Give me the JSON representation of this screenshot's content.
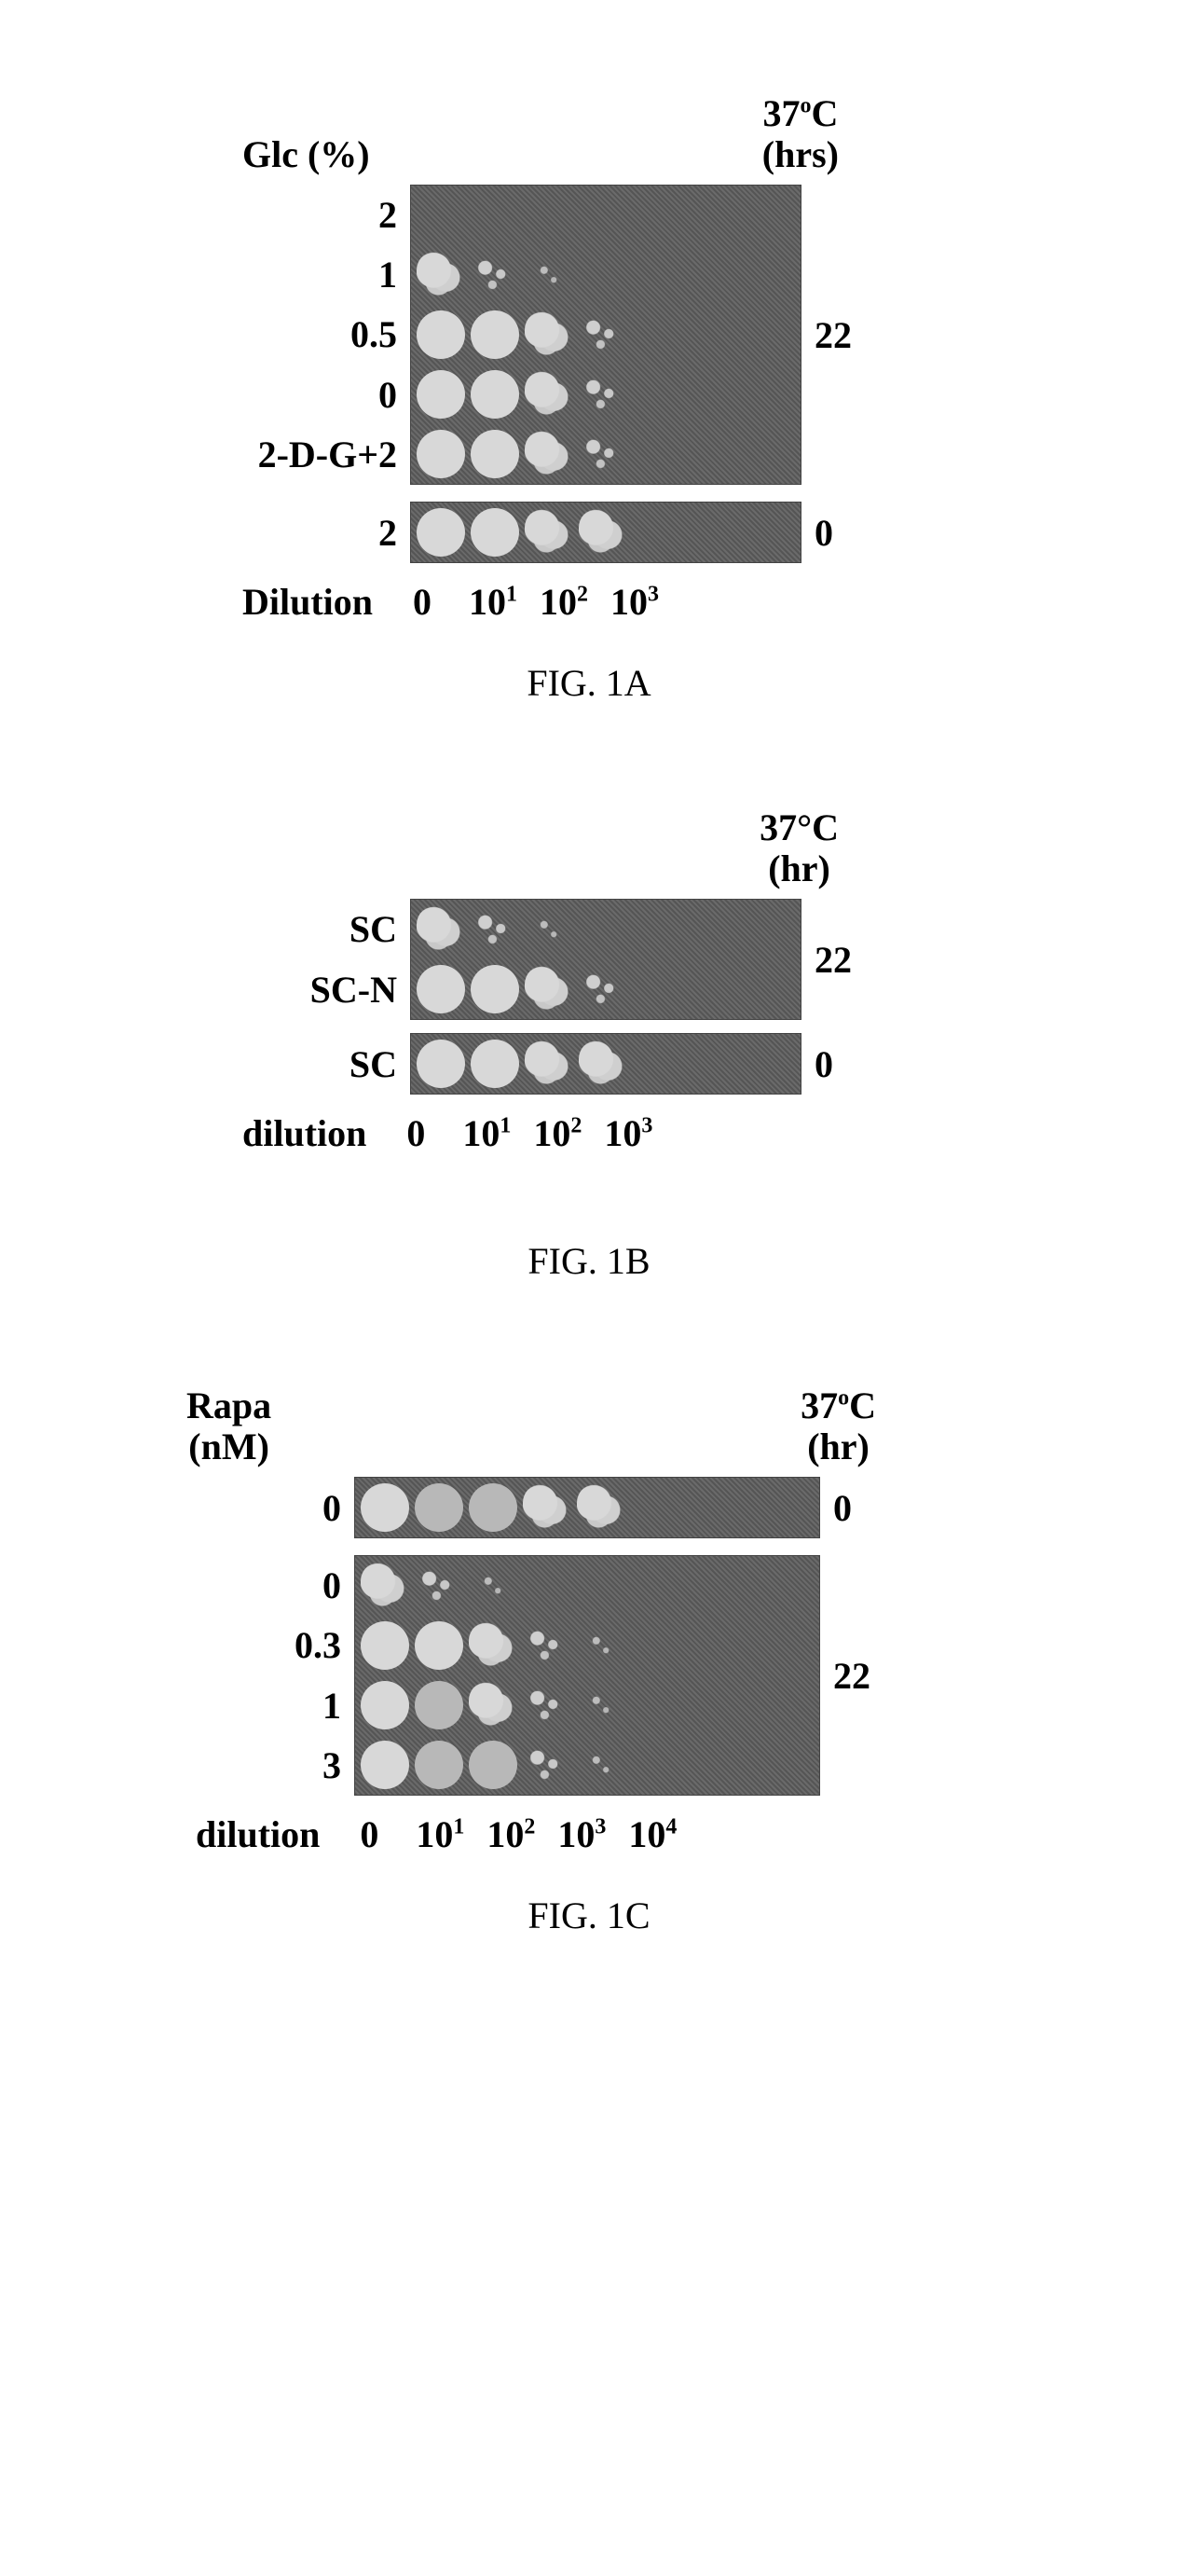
{
  "figA": {
    "topLeft": "Glc (%)",
    "topRightLine1": "37",
    "topRightDegree": "o",
    "topRightC": "C",
    "topRightLine2": "(hrs)",
    "leftLabels": [
      "2",
      "1",
      "0.5",
      "0",
      "2-D-G+2"
    ],
    "rightLabelMain": "22",
    "singleRowLeft": "2",
    "singleRowRight": "0",
    "dilutionLabel": "Dilution",
    "dilutions": [
      "0",
      "10¹",
      "10²",
      "10³"
    ],
    "caption": "FIG. 1A",
    "panelTopRows": [
      [
        "none",
        "none",
        "none",
        "none"
      ],
      [
        "clump",
        "few",
        "sparse",
        "none"
      ],
      [
        "spot",
        "spot",
        "clump",
        "few"
      ],
      [
        "spot",
        "spot",
        "clump",
        "few"
      ],
      [
        "spot",
        "spot",
        "clump",
        "few"
      ]
    ],
    "panelBottomRow": [
      "spot",
      "spot",
      "clump",
      "clump"
    ]
  },
  "figB": {
    "topRightLine1": "37°C",
    "topRightLine2": "(hr)",
    "leftLabelsTop": [
      "SC",
      "SC-N"
    ],
    "rightLabelTop": "22",
    "leftLabelsMid": [
      "SC"
    ],
    "rightLabelMid": "0",
    "dilutionLabel": "dilution",
    "dilutions": [
      "0",
      "10¹",
      "10²",
      "10³"
    ],
    "caption": "FIG. 1B",
    "panelTopRows": [
      [
        "clump",
        "few",
        "sparse",
        "none"
      ],
      [
        "spot",
        "spot",
        "clump",
        "few"
      ]
    ],
    "panelBottomRow": [
      "spot",
      "spot",
      "clump",
      "clump"
    ]
  },
  "figC": {
    "topLeftLine1": "Rapa",
    "topLeftLine2": "(nM)",
    "topRightLine1": "37",
    "topRightDegree": "o",
    "topRightC": "C",
    "topRightLine2": "(hr)",
    "singleRowLeft": "0",
    "singleRowRight": "0",
    "leftLabels": [
      "0",
      "0.3",
      "1",
      "3"
    ],
    "rightLabelMain": "22",
    "dilutionLabel": "dilution",
    "dilutions": [
      "0",
      "10¹",
      "10²",
      "10³",
      "10⁴"
    ],
    "caption": "FIG. 1C",
    "panelTopRow": [
      "spot",
      "dim",
      "dim",
      "clump",
      "clump"
    ],
    "panelBottomRows": [
      [
        "clump",
        "few",
        "sparse",
        "none",
        "none"
      ],
      [
        "spot",
        "spot",
        "clump",
        "few",
        "sparse"
      ],
      [
        "spot",
        "dim",
        "clump",
        "few",
        "sparse"
      ],
      [
        "spot",
        "dim",
        "dim",
        "few",
        "sparse"
      ]
    ]
  },
  "style": {
    "titleFontSize": 40,
    "labelFontSize": 40,
    "spotLight": "#d8d8d8",
    "spotDim": "#b8b8b8",
    "panelBg": "#666",
    "pageWidth": 1264
  }
}
